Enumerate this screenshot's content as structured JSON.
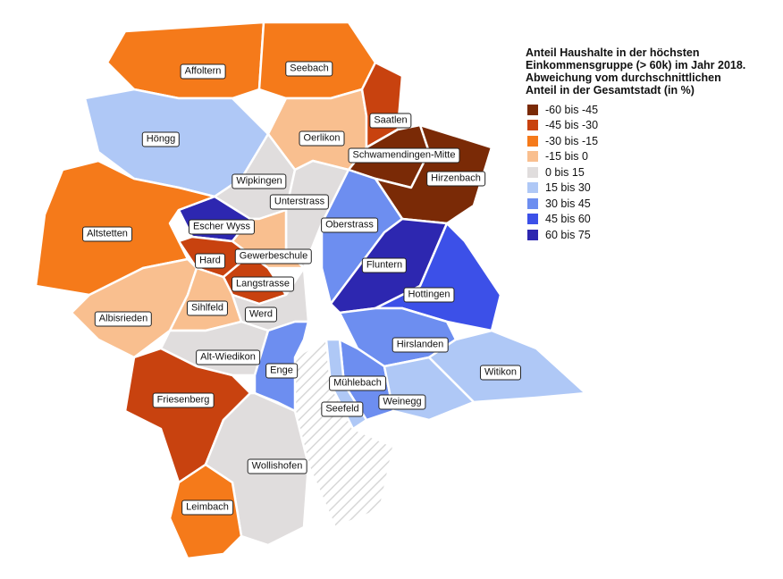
{
  "legend": {
    "title_lines": [
      "Anteil Haushalte in der höchsten",
      "Einkommensgruppe (> 60k) im Jahr 2018.",
      "Abweichung vom durchschnittlichen",
      "Anteil in der Gesamtstadt (in %)"
    ],
    "items": [
      {
        "label": "-60 bis -45",
        "color": "#7a2a06"
      },
      {
        "label": "-45 bis -30",
        "color": "#c8420f"
      },
      {
        "label": "-30 bis -15",
        "color": "#f57a1a"
      },
      {
        "label": "-15 bis 0",
        "color": "#f9bf8f"
      },
      {
        "label": "0 bis 15",
        "color": "#e0dddd"
      },
      {
        "label": "15 bis 30",
        "color": "#afc8f6"
      },
      {
        "label": "30 bis 45",
        "color": "#6d8ef0"
      },
      {
        "label": "45 bis 60",
        "color": "#3c50e8"
      },
      {
        "label": "60 bis 75",
        "color": "#2d27b0"
      }
    ]
  },
  "districts": [
    {
      "name": "Affoltern",
      "color": "#f57a1a"
    },
    {
      "name": "Seebach",
      "color": "#f57a1a"
    },
    {
      "name": "Höngg",
      "color": "#afc8f6"
    },
    {
      "name": "Oerlikon",
      "color": "#f9bf8f"
    },
    {
      "name": "Saatlen",
      "color": "#c8420f"
    },
    {
      "name": "Schwamendingen-Mitte",
      "color": "#7a2a06"
    },
    {
      "name": "Hirzenbach",
      "color": "#7a2a06"
    },
    {
      "name": "Wipkingen",
      "color": "#e0dddd"
    },
    {
      "name": "Unterstrass",
      "color": "#e0dddd"
    },
    {
      "name": "Oberstrass",
      "color": "#6d8ef0"
    },
    {
      "name": "Escher Wyss",
      "color": "#2d27b0"
    },
    {
      "name": "Altstetten",
      "color": "#f57a1a"
    },
    {
      "name": "Gewerbeschule",
      "color": "#f9bf8f"
    },
    {
      "name": "Hard",
      "color": "#c8420f"
    },
    {
      "name": "Langstrasse",
      "color": "#c8420f"
    },
    {
      "name": "Fluntern",
      "color": "#2d27b0"
    },
    {
      "name": "Hottingen",
      "color": "#3c50e8"
    },
    {
      "name": "Albisrieden",
      "color": "#f9bf8f"
    },
    {
      "name": "Sihlfeld",
      "color": "#f9bf8f"
    },
    {
      "name": "Werd",
      "color": "#e0dddd"
    },
    {
      "name": "Hirslanden",
      "color": "#6d8ef0"
    },
    {
      "name": "Alt-Wiedikon",
      "color": "#e0dddd"
    },
    {
      "name": "Enge",
      "color": "#6d8ef0"
    },
    {
      "name": "Witikon",
      "color": "#afc8f6"
    },
    {
      "name": "Friesenberg",
      "color": "#c8420f"
    },
    {
      "name": "Mühlebach",
      "color": "#6d8ef0"
    },
    {
      "name": "Weinegg",
      "color": "#afc8f6"
    },
    {
      "name": "Seefeld",
      "color": "#afc8f6"
    },
    {
      "name": "Wollishofen",
      "color": "#e0dddd"
    },
    {
      "name": "Leimbach",
      "color": "#f57a1a"
    }
  ]
}
